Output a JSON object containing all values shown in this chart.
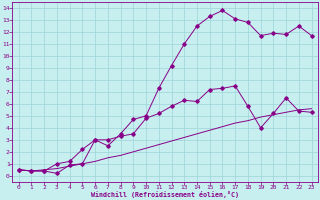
{
  "xlabel": "Windchill (Refroidissement éolien,°C)",
  "bg_color": "#c8eff0",
  "grid_color": "#9ed4d8",
  "line_color": "#880088",
  "xlim": [
    -0.5,
    23.5
  ],
  "ylim": [
    -0.5,
    14.5
  ],
  "xticks": [
    0,
    1,
    2,
    3,
    4,
    5,
    6,
    7,
    8,
    9,
    10,
    11,
    12,
    13,
    14,
    15,
    16,
    17,
    18,
    19,
    20,
    21,
    22,
    23
  ],
  "yticks": [
    0,
    1,
    2,
    3,
    4,
    5,
    6,
    7,
    8,
    9,
    10,
    11,
    12,
    13,
    14
  ],
  "curve1_x": [
    0,
    1,
    2,
    3,
    4,
    5,
    6,
    7,
    8,
    9,
    10,
    11,
    12,
    13,
    14,
    15,
    16,
    17,
    18,
    19,
    20,
    21,
    22,
    23
  ],
  "curve1_y": [
    0.5,
    0.4,
    0.4,
    0.2,
    0.9,
    1.0,
    3.0,
    2.5,
    3.5,
    4.7,
    5.0,
    7.3,
    9.2,
    11.0,
    12.5,
    13.3,
    13.8,
    13.1,
    12.8,
    11.7,
    11.9,
    11.8,
    12.5,
    11.7
  ],
  "curve2_x": [
    0,
    1,
    2,
    3,
    4,
    5,
    6,
    7,
    8,
    9,
    10,
    11,
    12,
    13,
    14,
    15,
    16,
    17,
    18,
    19,
    20,
    21,
    22,
    23
  ],
  "curve2_y": [
    0.5,
    0.4,
    0.4,
    1.0,
    1.2,
    2.2,
    3.0,
    3.0,
    3.3,
    3.5,
    4.8,
    5.2,
    5.8,
    6.3,
    6.2,
    7.2,
    7.3,
    7.5,
    5.8,
    4.0,
    5.2,
    6.5,
    5.4,
    5.3
  ],
  "curve3_x": [
    0,
    1,
    2,
    3,
    4,
    5,
    6,
    7,
    8,
    9,
    10,
    11,
    12,
    13,
    14,
    15,
    16,
    17,
    18,
    19,
    20,
    21,
    22,
    23
  ],
  "curve3_y": [
    0.5,
    0.4,
    0.5,
    0.6,
    0.8,
    1.0,
    1.2,
    1.5,
    1.7,
    2.0,
    2.3,
    2.6,
    2.9,
    3.2,
    3.5,
    3.8,
    4.1,
    4.4,
    4.6,
    4.9,
    5.1,
    5.3,
    5.5,
    5.6
  ]
}
